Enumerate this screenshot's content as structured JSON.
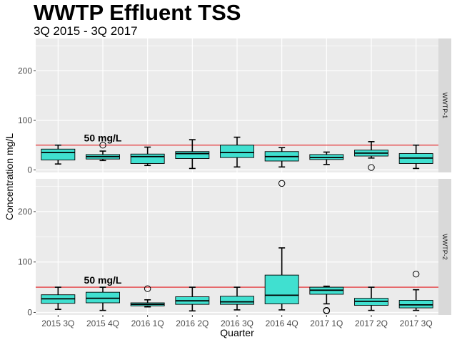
{
  "chart_data": {
    "type": "box",
    "title": "WWTP Effluent TSS",
    "subtitle": "3Q 2015 - 3Q 2017",
    "xlabel": "Quarter",
    "ylabel": "Concentration mg/L",
    "ylim": [
      -5,
      265
    ],
    "yticks": [
      0,
      100,
      200
    ],
    "categories": [
      "2015 3Q",
      "2015 4Q",
      "2016 1Q",
      "2016 2Q",
      "2016 3Q",
      "2016 4Q",
      "2017 1Q",
      "2017 2Q",
      "2017 3Q"
    ],
    "reference_line": {
      "value": 50,
      "label": "50 mg/L",
      "color": "#e31a1c"
    },
    "box_fill": "#40e0d0",
    "panel_background": "#ebebeb",
    "grid": true,
    "facets": [
      {
        "label": "WWTP-1",
        "boxes": [
          {
            "q1": 20,
            "median": 35,
            "q3": 42,
            "whisker_low": 12,
            "whisker_high": 50,
            "outliers": []
          },
          {
            "q1": 22,
            "median": 27,
            "q3": 31,
            "whisker_low": 19,
            "whisker_high": 38,
            "outliers": [
              50
            ]
          },
          {
            "q1": 13,
            "median": 27,
            "q3": 32,
            "whisker_low": 9,
            "whisker_high": 46,
            "outliers": []
          },
          {
            "q1": 23,
            "median": 33,
            "q3": 37,
            "whisker_low": 3,
            "whisker_high": 61,
            "outliers": []
          },
          {
            "q1": 25,
            "median": 35,
            "q3": 50,
            "whisker_low": 6,
            "whisker_high": 66,
            "outliers": []
          },
          {
            "q1": 18,
            "median": 27,
            "q3": 37,
            "whisker_low": 6,
            "whisker_high": 45,
            "outliers": []
          },
          {
            "q1": 21,
            "median": 25,
            "q3": 31,
            "whisker_low": 11,
            "whisker_high": 36,
            "outliers": []
          },
          {
            "q1": 28,
            "median": 34,
            "q3": 40,
            "whisker_low": 24,
            "whisker_high": 57,
            "outliers": [
              5
            ]
          },
          {
            "q1": 13,
            "median": 24,
            "q3": 33,
            "whisker_low": 3,
            "whisker_high": 50,
            "outliers": []
          }
        ]
      },
      {
        "label": "WWTP-2",
        "boxes": [
          {
            "q1": 18,
            "median": 27,
            "q3": 35,
            "whisker_low": 6,
            "whisker_high": 50,
            "outliers": []
          },
          {
            "q1": 19,
            "median": 28,
            "q3": 40,
            "whisker_low": 4,
            "whisker_high": 50,
            "outliers": []
          },
          {
            "q1": 13,
            "median": 16,
            "q3": 19,
            "whisker_low": 11,
            "whisker_high": 25,
            "outliers": [
              47
            ]
          },
          {
            "q1": 16,
            "median": 23,
            "q3": 31,
            "whisker_low": 3,
            "whisker_high": 50,
            "outliers": []
          },
          {
            "q1": 16,
            "median": 21,
            "q3": 32,
            "whisker_low": 5,
            "whisker_high": 50,
            "outliers": []
          },
          {
            "q1": 17,
            "median": 34,
            "q3": 74,
            "whisker_low": 5,
            "whisker_high": 128,
            "outliers": [
              256
            ]
          },
          {
            "q1": 36,
            "median": 44,
            "q3": 50,
            "whisker_low": 17,
            "whisker_high": 52,
            "outliers": [
              3,
              4
            ]
          },
          {
            "q1": 14,
            "median": 22,
            "q3": 28,
            "whisker_low": 4,
            "whisker_high": 50,
            "outliers": []
          },
          {
            "q1": 9,
            "median": 15,
            "q3": 24,
            "whisker_low": 4,
            "whisker_high": 45,
            "outliers": [
              76
            ]
          }
        ]
      }
    ]
  }
}
